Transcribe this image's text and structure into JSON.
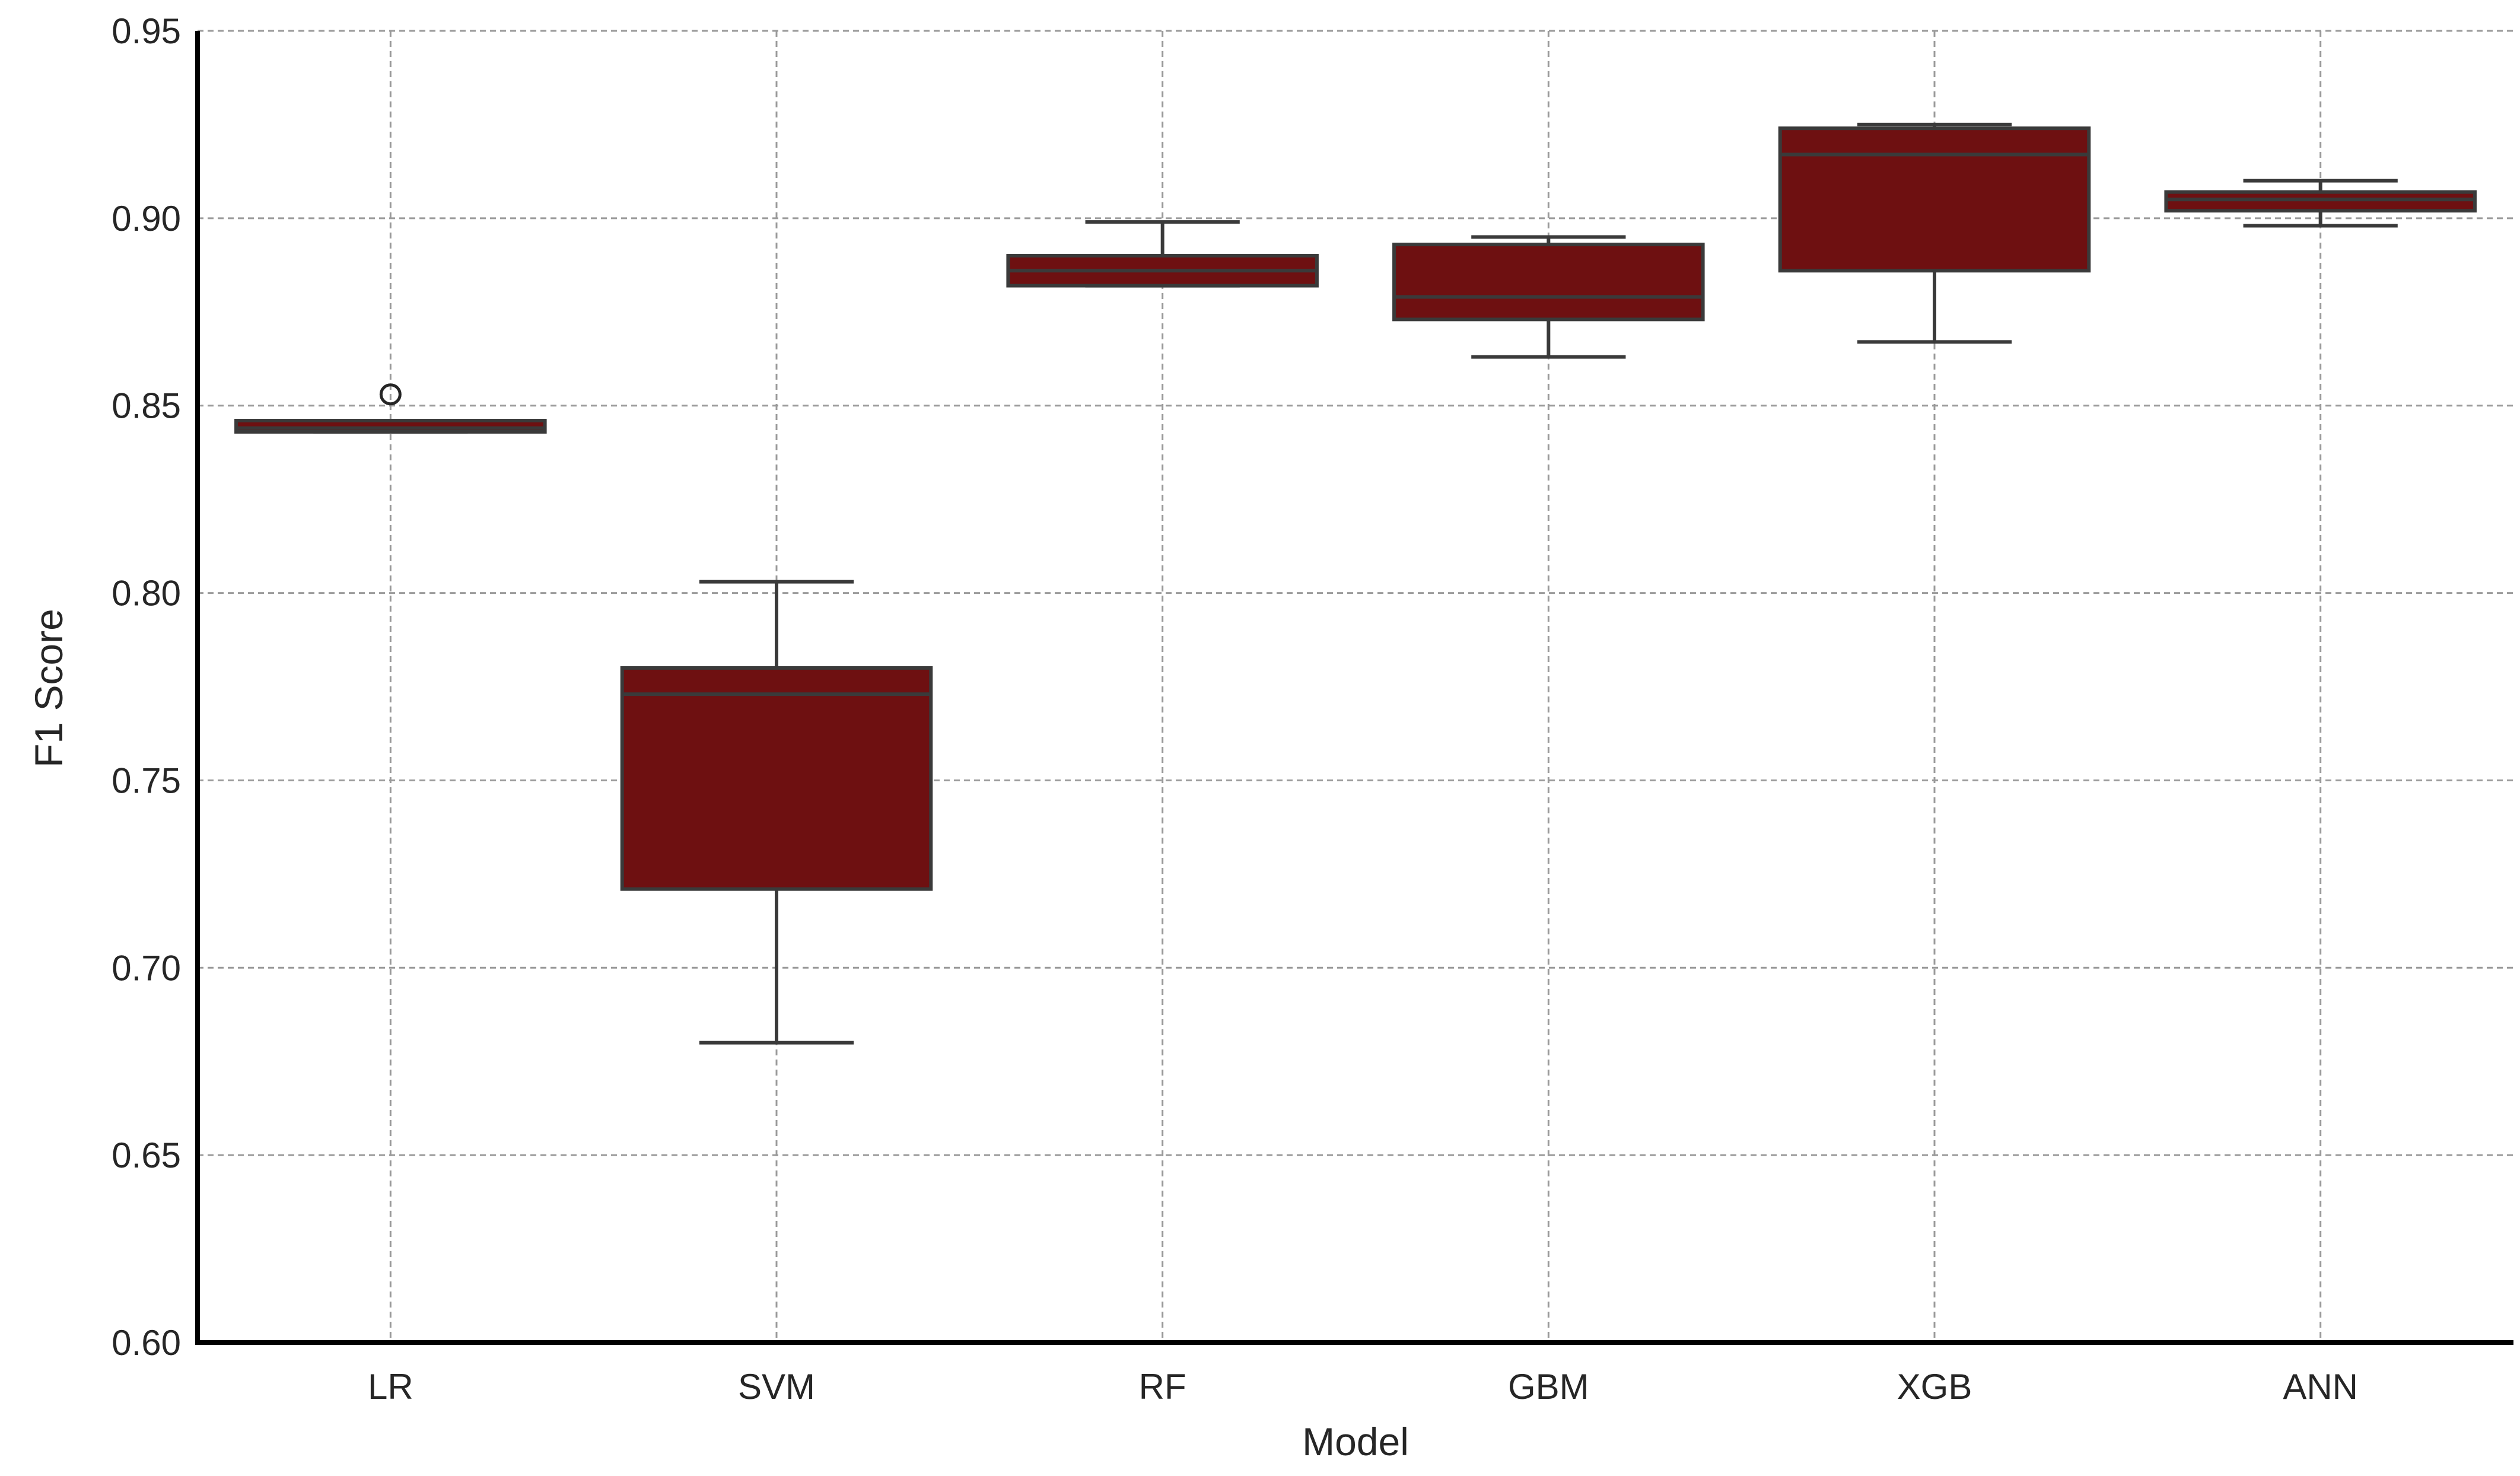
{
  "chart_data": {
    "type": "boxplot",
    "title": "",
    "xlabel": "Model",
    "ylabel": "F1 Score",
    "ylim": [
      0.6,
      0.95
    ],
    "yticks": [
      "0.60",
      "0.65",
      "0.70",
      "0.75",
      "0.80",
      "0.85",
      "0.90",
      "0.95"
    ],
    "grid": true,
    "legend": "none",
    "box_color": "#6e1011",
    "line_color": "#3a3a3a",
    "categories": [
      "LR",
      "SVM",
      "RF",
      "GBM",
      "XGB",
      "ANN"
    ],
    "boxes": [
      {
        "label": "LR",
        "whislo": 0.843,
        "q1": 0.843,
        "med": 0.844,
        "q3": 0.846,
        "whishi": 0.846,
        "fliers": [
          0.853
        ]
      },
      {
        "label": "SVM",
        "whislo": 0.68,
        "q1": 0.721,
        "med": 0.773,
        "q3": 0.78,
        "whishi": 0.803,
        "fliers": []
      },
      {
        "label": "RF",
        "whislo": 0.882,
        "q1": 0.882,
        "med": 0.886,
        "q3": 0.89,
        "whishi": 0.899,
        "fliers": []
      },
      {
        "label": "GBM",
        "whislo": 0.863,
        "q1": 0.873,
        "med": 0.879,
        "q3": 0.893,
        "whishi": 0.895,
        "fliers": []
      },
      {
        "label": "XGB",
        "whislo": 0.867,
        "q1": 0.886,
        "med": 0.917,
        "q3": 0.924,
        "whishi": 0.925,
        "fliers": []
      },
      {
        "label": "ANN",
        "whislo": 0.898,
        "q1": 0.902,
        "med": 0.905,
        "q3": 0.907,
        "whishi": 0.91,
        "fliers": []
      }
    ]
  }
}
